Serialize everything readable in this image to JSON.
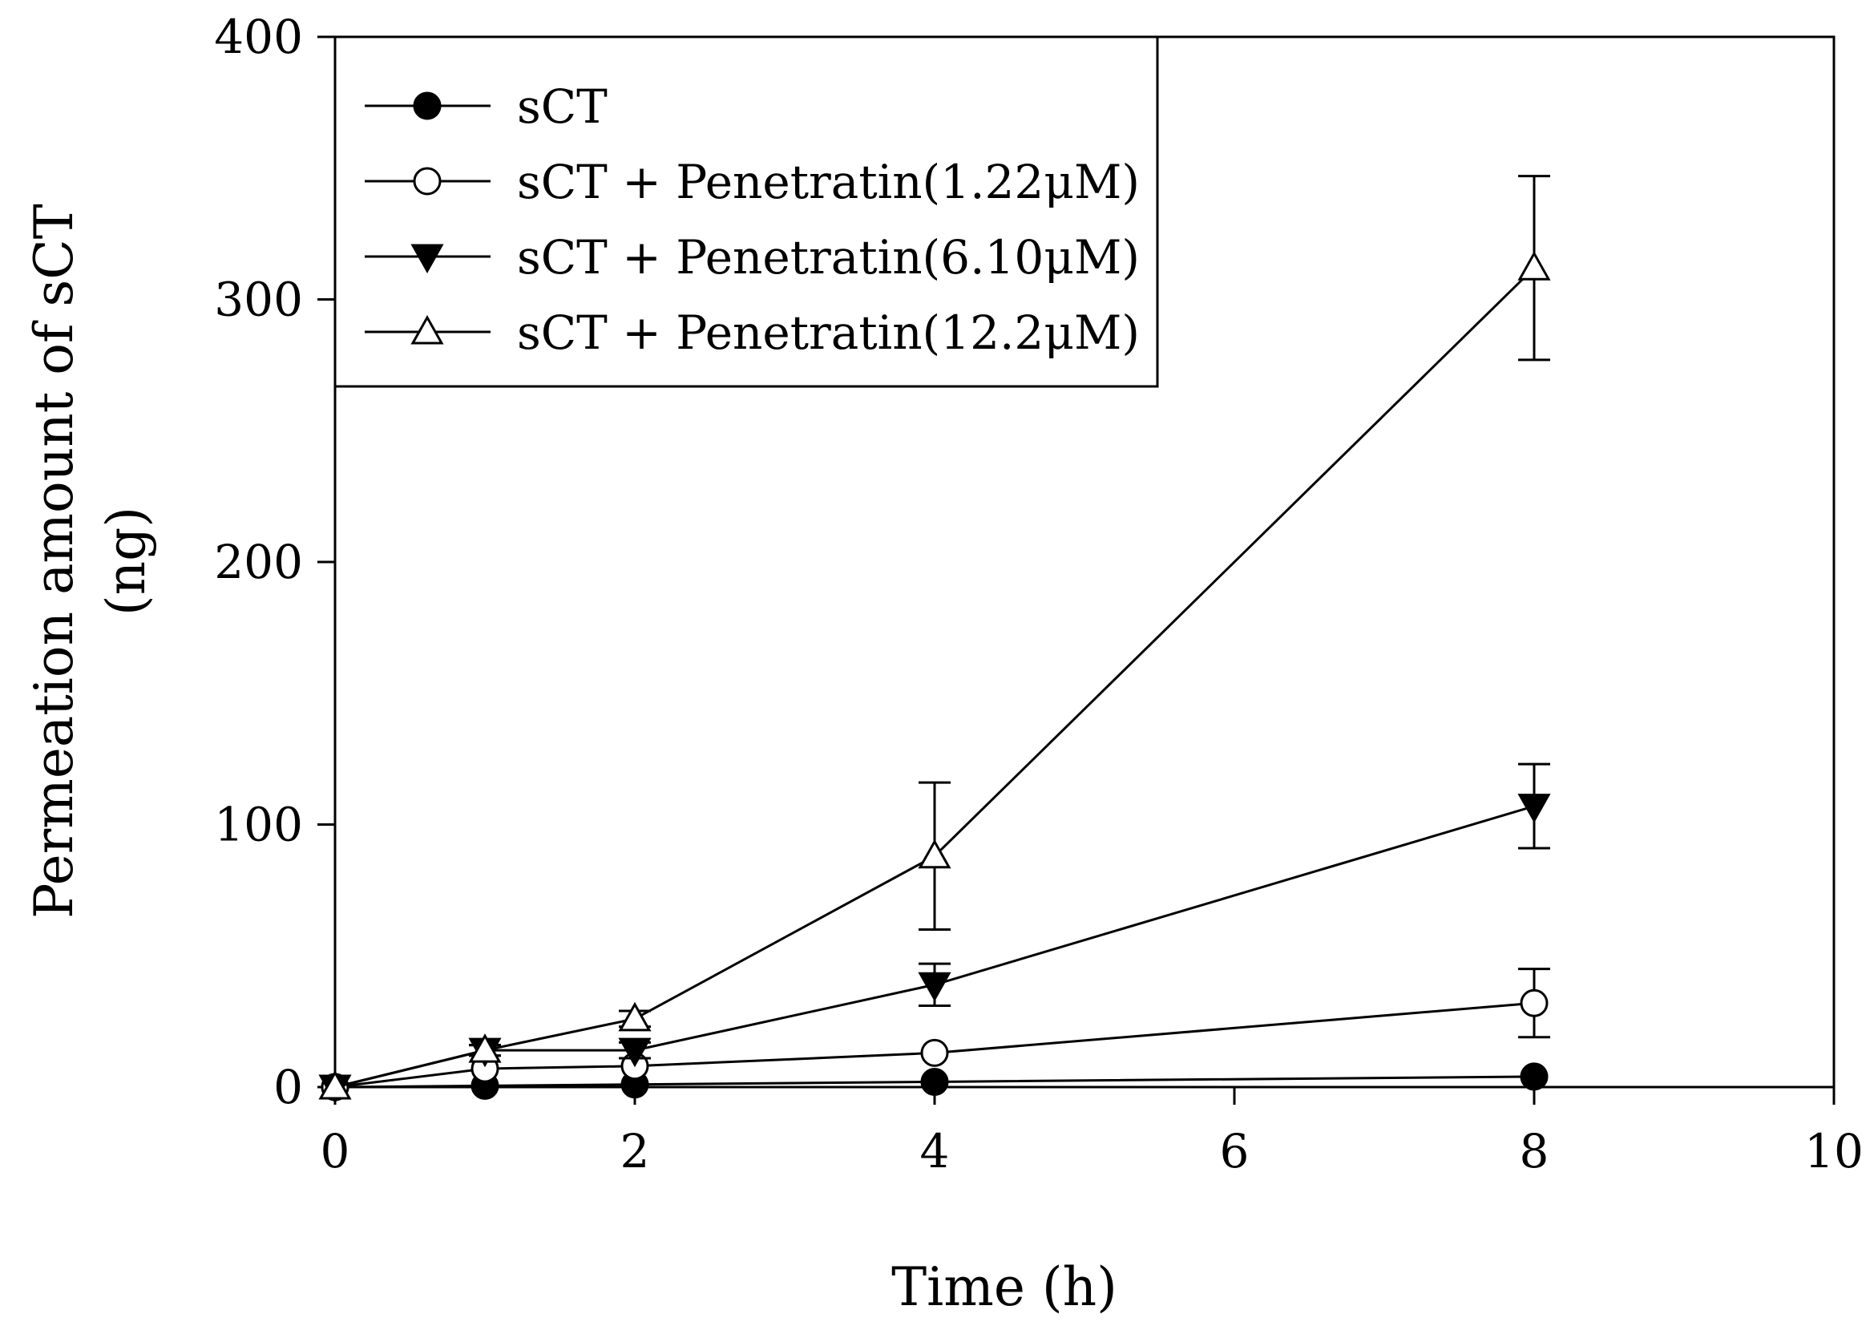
{
  "chart_data": {
    "type": "line",
    "title": "",
    "xlabel": "Time (h)",
    "ylabel_lines": [
      "Permeation amount of sCT",
      "(ng)"
    ],
    "xlim": [
      0,
      10
    ],
    "ylim": [
      0,
      400
    ],
    "x_ticks": [
      0,
      2,
      4,
      6,
      8,
      10
    ],
    "y_ticks": [
      0,
      100,
      200,
      300,
      400
    ],
    "grid": false,
    "legend_position": "top-left",
    "series": [
      {
        "name": "sCT",
        "marker": "filled-circle",
        "x": [
          0,
          1,
          2,
          4,
          8
        ],
        "y": [
          0,
          0.5,
          1,
          2,
          4
        ],
        "error": [
          0,
          0,
          0,
          0,
          0
        ]
      },
      {
        "name": "sCT + Penetratin(1.22μM)",
        "marker": "open-circle",
        "x": [
          0,
          1,
          2,
          4,
          8
        ],
        "y": [
          0,
          7,
          8,
          13,
          32
        ],
        "error": [
          0,
          0,
          0,
          0,
          13
        ]
      },
      {
        "name": "sCT + Penetratin(6.10μM)",
        "marker": "filled-triangle-down",
        "x": [
          0,
          1,
          2,
          4,
          8
        ],
        "y": [
          0,
          14,
          14,
          39,
          107
        ],
        "error": [
          0,
          2,
          3,
          8,
          16
        ]
      },
      {
        "name": "sCT + Penetratin(12.2μM)",
        "marker": "open-triangle-up",
        "x": [
          0,
          1,
          2,
          4,
          8
        ],
        "y": [
          0,
          14,
          26,
          88,
          312
        ],
        "error": [
          0,
          2,
          3,
          28,
          35
        ]
      }
    ]
  }
}
